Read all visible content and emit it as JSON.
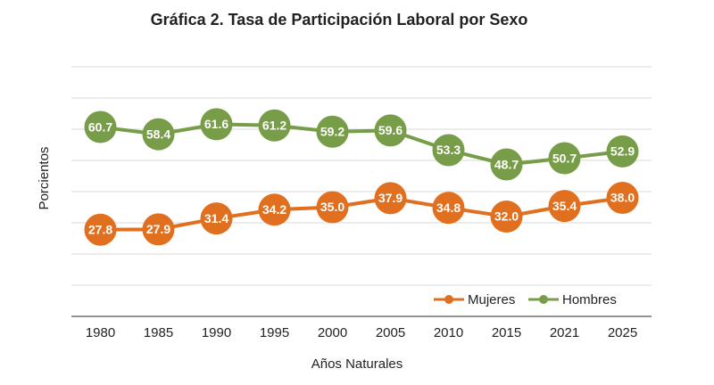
{
  "chart_data": {
    "type": "line",
    "title": "Gráfica 2. Tasa de Participación Laboral por Sexo",
    "x_label": "Años Naturales",
    "y_label": "Porcientos",
    "categories": [
      "1980",
      "1985",
      "1990",
      "1995",
      "2000",
      "2005",
      "2010",
      "2015",
      "2021",
      "2025"
    ],
    "series": [
      {
        "name": "Mujeres",
        "color": "#e0701f",
        "values": [
          27.8,
          27.9,
          31.4,
          34.2,
          35.0,
          37.9,
          34.8,
          32.0,
          35.4,
          38.0
        ],
        "value_labels": [
          "27.8",
          "27.9",
          "31.4",
          "34.2",
          "35.0",
          "37.9",
          "34.8",
          "32.0",
          "35.4",
          "38.0"
        ]
      },
      {
        "name": "Hombres",
        "color": "#789d48",
        "values": [
          60.7,
          58.4,
          61.6,
          61.2,
          59.2,
          59.6,
          53.3,
          48.7,
          50.7,
          52.9
        ],
        "value_labels": [
          "60.7",
          "58.4",
          "61.6",
          "61.2",
          "59.2",
          "59.6",
          "53.3",
          "48.7",
          "50.7",
          "52.9"
        ]
      }
    ],
    "ylim": [
      0,
      80
    ],
    "yticks": [
      0,
      10,
      20,
      30,
      40,
      50,
      60,
      70,
      80
    ],
    "grid": true,
    "legend": "bottom-right"
  }
}
